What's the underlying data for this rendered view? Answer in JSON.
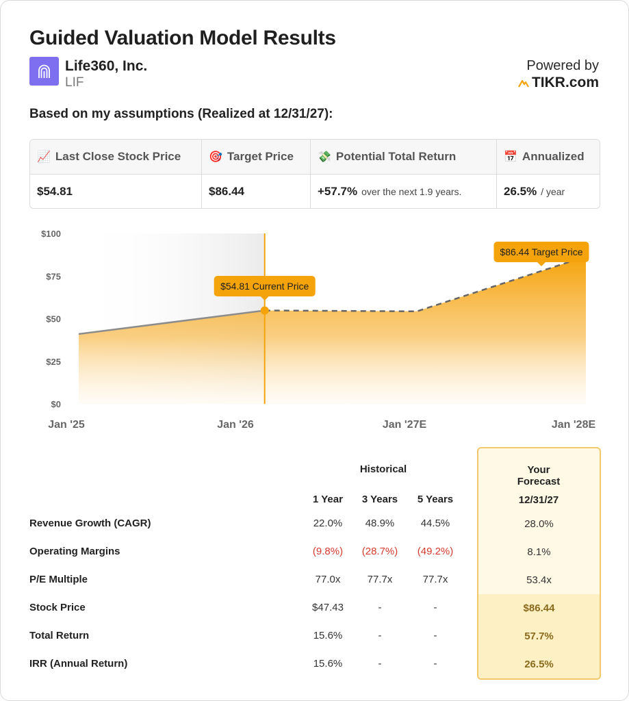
{
  "header": {
    "title": "Guided Valuation Model Results",
    "company": "Life360, Inc.",
    "ticker": "LIF",
    "powered_by": "Powered by",
    "brand": "TIKR.com"
  },
  "subtitle": "Based on my assumptions (Realized at 12/31/27):",
  "summary": {
    "last_close_label": "Last Close Stock Price",
    "last_close_value": "$54.81",
    "target_label": "Target Price",
    "target_value": "$86.44",
    "return_label": "Potential Total Return",
    "return_value": "+57.7%",
    "return_note": "over the next 1.9 years.",
    "annualized_label": "Annualized",
    "annualized_value": "26.5%",
    "annualized_note": "/ year"
  },
  "chart_data": {
    "type": "area",
    "y_ticks": [
      "$100",
      "$75",
      "$50",
      "$25",
      "$0"
    ],
    "ylim": [
      0,
      100
    ],
    "x_ticks": [
      "Jan '25",
      "Jan '26",
      "Jan '27E",
      "Jan '28E"
    ],
    "historical": [
      {
        "t": 0,
        "y": 41
      },
      {
        "t": 1.1,
        "y": 54.81
      }
    ],
    "forecast": [
      {
        "t": 1.1,
        "y": 54.81
      },
      {
        "t": 2.0,
        "y": 54.3
      },
      {
        "t": 3.0,
        "y": 86.44
      }
    ],
    "current_label": "$54.81 Current Price",
    "target_label": "$86.44 Target Price",
    "colors": {
      "accent": "#f5a30a",
      "line": "#8c8c8c",
      "dash": "#666666"
    }
  },
  "table": {
    "historical_header": "Historical",
    "forecast_header": "Your Forecast",
    "columns": [
      "1 Year",
      "3 Years",
      "5 Years"
    ],
    "forecast_date": "12/31/27",
    "rows": [
      {
        "label": "Revenue Growth (CAGR)",
        "values": [
          "22.0%",
          "48.9%",
          "44.5%"
        ],
        "forecast": "28.0%"
      },
      {
        "label": "Operating Margins",
        "values": [
          "(9.8%)",
          "(28.7%)",
          "(49.2%)"
        ],
        "forecast": "8.1%"
      },
      {
        "label": "P/E Multiple",
        "values": [
          "77.0x",
          "77.7x",
          "77.7x"
        ],
        "forecast": "53.4x"
      },
      {
        "label": "Stock Price",
        "values": [
          "$47.43",
          "-",
          "-"
        ],
        "forecast": "$86.44"
      },
      {
        "label": "Total Return",
        "values": [
          "15.6%",
          "-",
          "-"
        ],
        "forecast": "57.7%"
      },
      {
        "label": "IRR (Annual Return)",
        "values": [
          "15.6%",
          "-",
          "-"
        ],
        "forecast": "26.5%"
      }
    ]
  }
}
